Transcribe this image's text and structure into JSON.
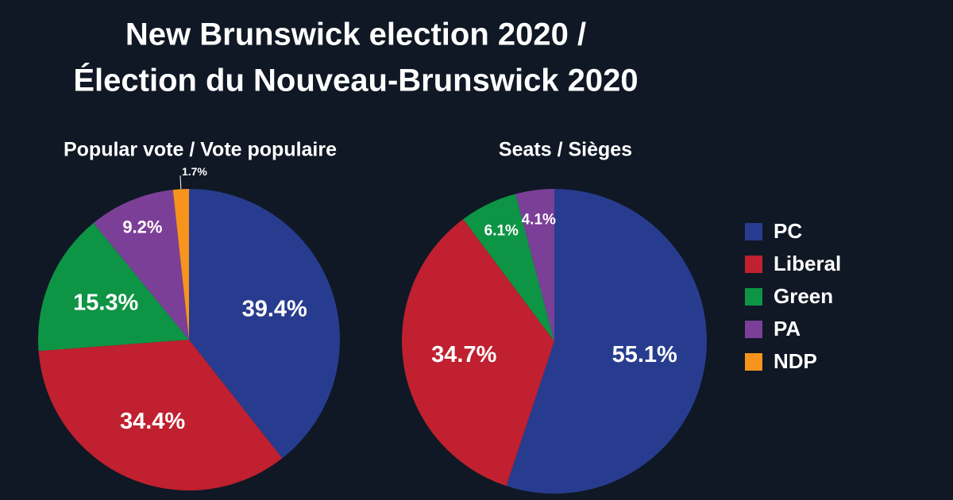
{
  "title": [
    "New Brunswick election 2020 /",
    "Élection du Nouveau-Brunswick 2020"
  ],
  "legend_position": "right",
  "chart_data": [
    {
      "type": "pie",
      "title": "Popular vote / Vote populaire",
      "categories": [
        "PC",
        "Liberal",
        "Green",
        "PA",
        "NDP"
      ],
      "values": [
        39.4,
        34.4,
        15.3,
        9.2,
        1.7
      ],
      "value_labels": [
        "39.4%",
        "34.4%",
        "15.3%",
        "9.2%",
        "1.7%"
      ],
      "colors": [
        "#283c8f",
        "#c0202f",
        "#0e9445",
        "#7c3f98",
        "#f7941d"
      ]
    },
    {
      "type": "pie",
      "title": "Seats / Sièges",
      "categories": [
        "PC",
        "Liberal",
        "Green",
        "PA"
      ],
      "values": [
        55.1,
        34.7,
        6.1,
        4.1
      ],
      "value_labels": [
        "55.1%",
        "34.7%",
        "6.1%",
        "4.1%"
      ],
      "colors": [
        "#283c8f",
        "#c0202f",
        "#0e9445",
        "#7c3f98"
      ]
    }
  ]
}
